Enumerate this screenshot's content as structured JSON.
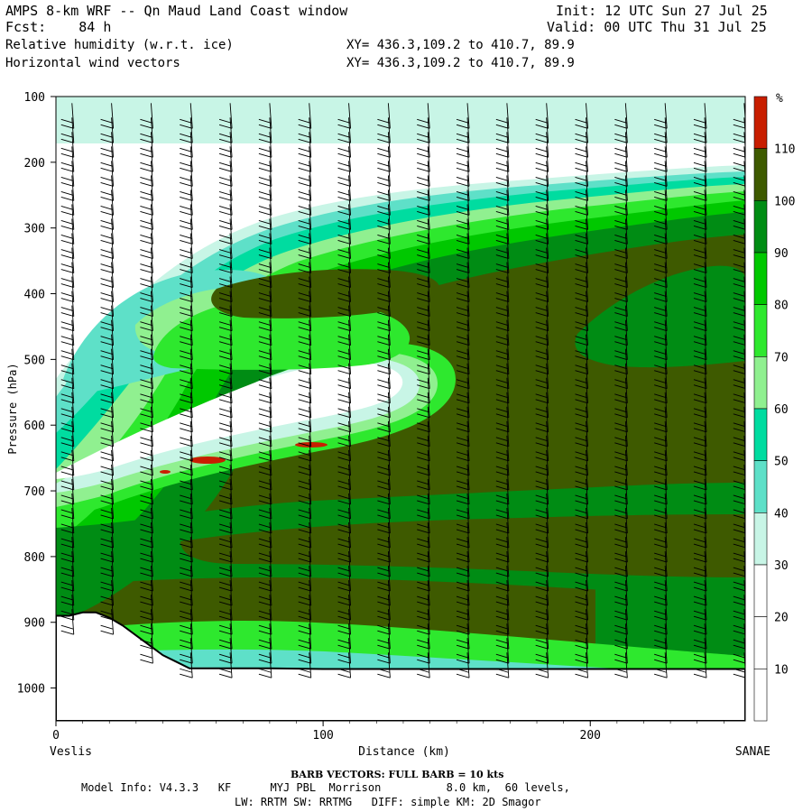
{
  "header": {
    "title": "AMPS 8-km WRF -- Qn Maud Land Coast window",
    "fcst": "Fcst:    84 h",
    "field1": "Relative humidity (w.r.t. ice)",
    "field2": "Horizontal wind vectors",
    "xy1": "XY= 436.3,109.2 to 410.7, 89.9",
    "xy2": "XY= 436.3,109.2 to 410.7, 89.9",
    "init": "Init: 12 UTC Sun 27 Jul 25",
    "valid": "Valid: 00 UTC Thu 31 Jul 25"
  },
  "chart_data": {
    "type": "heatmap",
    "xlabel": "Distance (km)",
    "ylabel": "Pressure (hPa)",
    "x_range": [
      0,
      258
    ],
    "y_range": [
      100,
      1050
    ],
    "x_ticks": [
      0,
      100,
      200
    ],
    "y_ticks": [
      100,
      200,
      300,
      400,
      500,
      600,
      700,
      800,
      900,
      1000
    ],
    "left_endpoint": "Veslis",
    "right_endpoint": "SANAE",
    "colorbar": {
      "unit": "%",
      "labels": [
        10,
        20,
        30,
        40,
        50,
        60,
        70,
        80,
        90,
        100,
        110
      ],
      "colors": [
        "#ffffff",
        "#ffffff",
        "#ffffff",
        "#c8f5e6",
        "#5ee0c8",
        "#00dca0",
        "#90f090",
        "#2ee82e",
        "#00c800",
        "#008c14",
        "#3e5a00",
        "#c81e00"
      ]
    },
    "terrain_profile": {
      "distance_km": [
        0,
        5,
        10,
        15,
        20,
        25,
        30,
        35,
        40,
        45,
        50,
        60,
        80,
        100,
        150,
        200,
        258
      ],
      "pressure_hpa": [
        890,
        890,
        885,
        885,
        893,
        905,
        920,
        935,
        950,
        960,
        970,
        970,
        970,
        971,
        971,
        971,
        971
      ]
    }
  },
  "footer": {
    "barb_note": "BARB VECTORS: FULL BARB = 10 kts",
    "model_line1": "Model Info: V4.3.3   KF      MYJ PBL  Morrison          8.0 km,  60 levels,",
    "model_line2": "LW: RRTM SW: RRTMG   DIFF: simple KM: 2D Smagor"
  }
}
